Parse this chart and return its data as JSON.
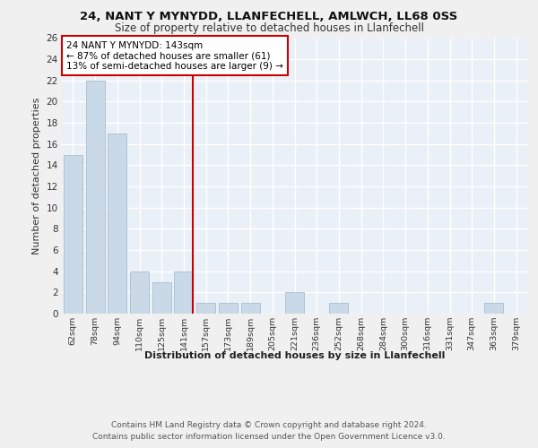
{
  "title1": "24, NANT Y MYNYDD, LLANFECHELL, AMLWCH, LL68 0SS",
  "title2": "Size of property relative to detached houses in Llanfechell",
  "xlabel": "Distribution of detached houses by size in Llanfechell",
  "ylabel": "Number of detached properties",
  "categories": [
    "62sqm",
    "78sqm",
    "94sqm",
    "110sqm",
    "125sqm",
    "141sqm",
    "157sqm",
    "173sqm",
    "189sqm",
    "205sqm",
    "221sqm",
    "236sqm",
    "252sqm",
    "268sqm",
    "284sqm",
    "300sqm",
    "316sqm",
    "331sqm",
    "347sqm",
    "363sqm",
    "379sqm"
  ],
  "values": [
    15,
    22,
    17,
    4,
    3,
    4,
    1,
    1,
    1,
    0,
    2,
    0,
    1,
    0,
    0,
    0,
    0,
    0,
    0,
    1,
    0
  ],
  "bar_color": "#c9d9e8",
  "bar_edge_color": "#a8bece",
  "highlight_line_color": "#cc0000",
  "annotation_text": "24 NANT Y MYNYDD: 143sqm\n← 87% of detached houses are smaller (61)\n13% of semi-detached houses are larger (9) →",
  "ylim": [
    0,
    26
  ],
  "yticks": [
    0,
    2,
    4,
    6,
    8,
    10,
    12,
    14,
    16,
    18,
    20,
    22,
    24,
    26
  ],
  "background_color": "#eaf0f8",
  "grid_color": "#ffffff",
  "fig_background": "#f0f0f0",
  "footer": "Contains HM Land Registry data © Crown copyright and database right 2024.\nContains public sector information licensed under the Open Government Licence v3.0."
}
